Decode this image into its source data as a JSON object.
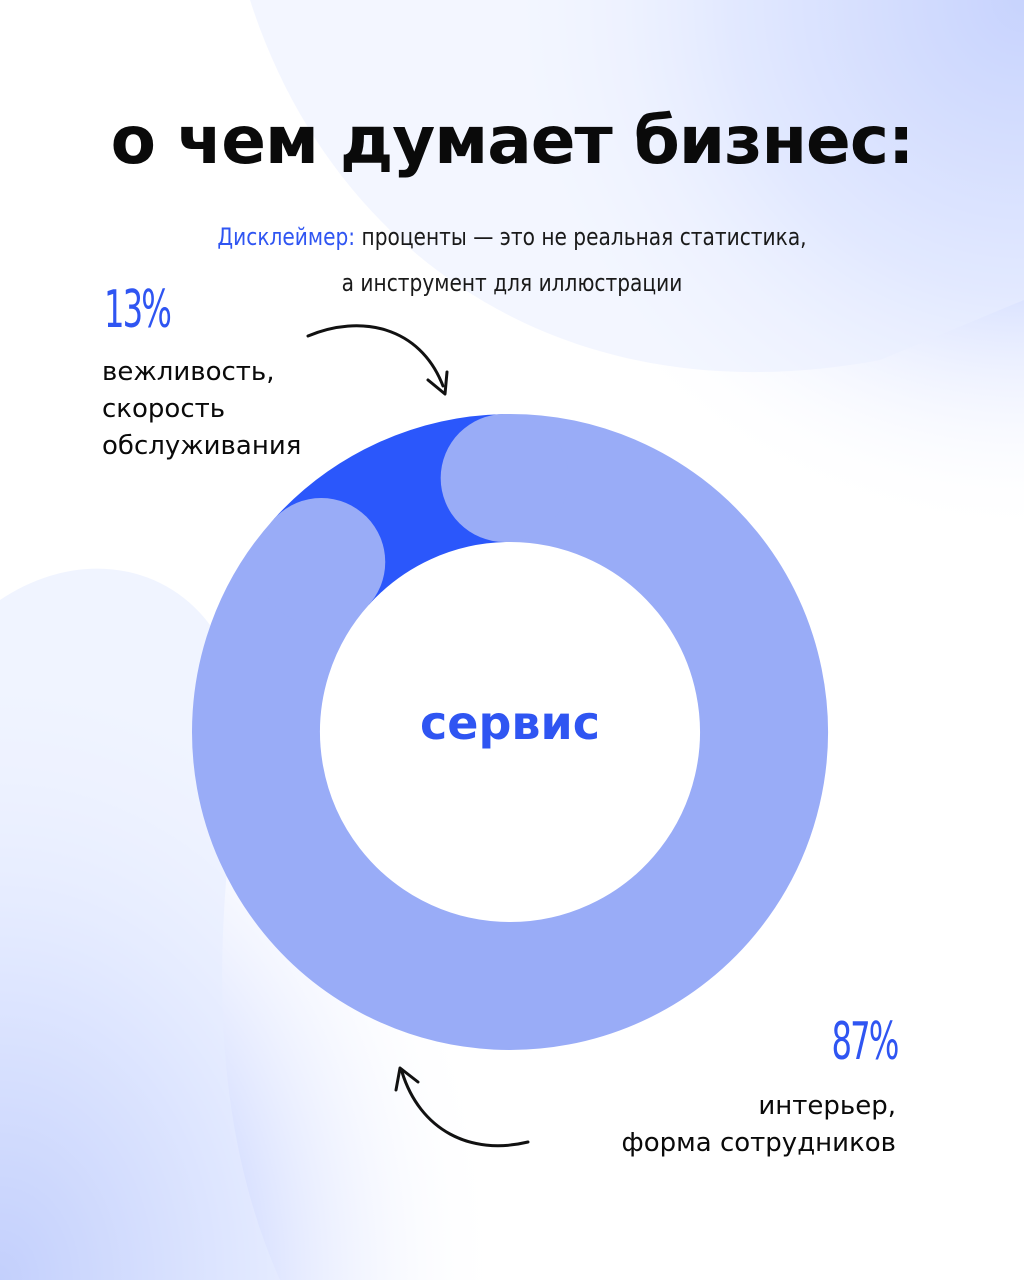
{
  "title": "о чем думает бизнес:",
  "disclaimer": {
    "label": "Дисклеймер:",
    "line1": "проценты — это не реальная статистика,",
    "line2": "а инструмент для иллюстрации"
  },
  "colors": {
    "accent": "#2f55f2",
    "segment_small": "#2b57fb",
    "segment_large": "#99acf7",
    "background_tint": "#dbe3ff"
  },
  "chart_data": {
    "type": "pie",
    "center_label": "сервис",
    "slices": [
      {
        "percent_label": "13%",
        "value": 13,
        "description": [
          "вежливость,",
          "скорость",
          "обслуживания"
        ]
      },
      {
        "percent_label": "87%",
        "value": 87,
        "description": [
          "интерьер,",
          "форма сотрудников"
        ]
      }
    ]
  },
  "icons": {
    "arrow_top": "curved-arrow-icon",
    "arrow_bottom": "curved-arrow-icon"
  }
}
